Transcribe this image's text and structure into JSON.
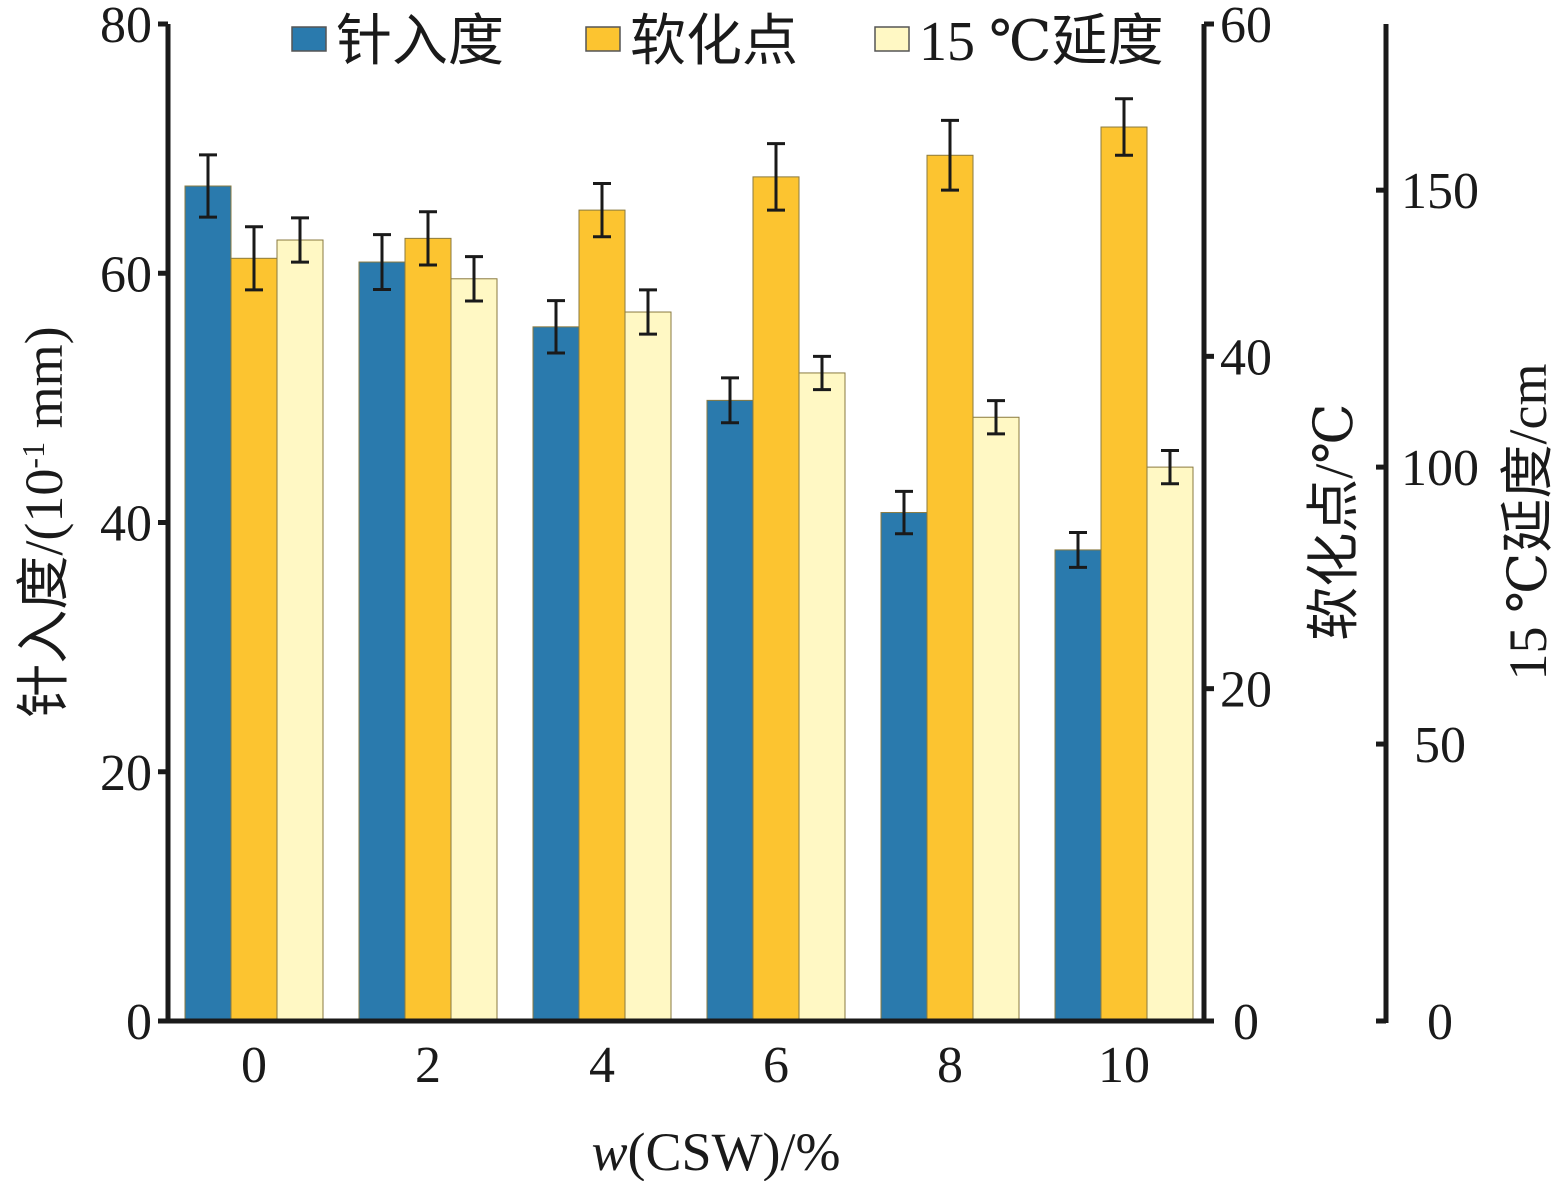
{
  "chart_data": {
    "type": "bar",
    "categories": [
      "0",
      "2",
      "4",
      "6",
      "8",
      "10"
    ],
    "xlabel_italic": "w",
    "xlabel_rest": "(CSW)/%",
    "legend_placement": "top",
    "grid": false,
    "series": [
      {
        "name": "针入度",
        "axis": "left",
        "color": "#2a7aad",
        "values": [
          67.0,
          60.9,
          55.7,
          49.8,
          40.8,
          37.8
        ],
        "errors": [
          2.5,
          2.2,
          2.1,
          1.8,
          1.7,
          1.4
        ]
      },
      {
        "name": "软化点",
        "axis": "right1",
        "color": "#fcc430",
        "values": [
          45.9,
          47.1,
          48.8,
          50.8,
          52.1,
          53.8
        ],
        "errors": [
          1.9,
          1.6,
          1.6,
          2.0,
          2.1,
          1.7
        ]
      },
      {
        "name": "15 ℃延度",
        "axis": "right2",
        "color": "#fff8c4",
        "values": [
          141,
          134,
          128,
          117,
          109,
          100
        ],
        "errors": [
          4.0,
          4.0,
          4.0,
          3.0,
          3.0,
          3.0
        ]
      }
    ],
    "axes": {
      "left": {
        "label_main": "针入度/(10",
        "label_sup": "-1",
        "label_end": " mm)",
        "ylim": [
          0,
          80
        ],
        "ticks": [
          "0",
          "20",
          "40",
          "60",
          "80"
        ]
      },
      "right1": {
        "label": "软化点/℃",
        "ylim": [
          0,
          60
        ],
        "ticks": [
          "0",
          "20",
          "40",
          "60"
        ]
      },
      "right2": {
        "label": "15 ℃延度/cm",
        "ylim": [
          0,
          180
        ],
        "ticks": [
          "0",
          "50",
          "100",
          "150"
        ]
      }
    }
  }
}
